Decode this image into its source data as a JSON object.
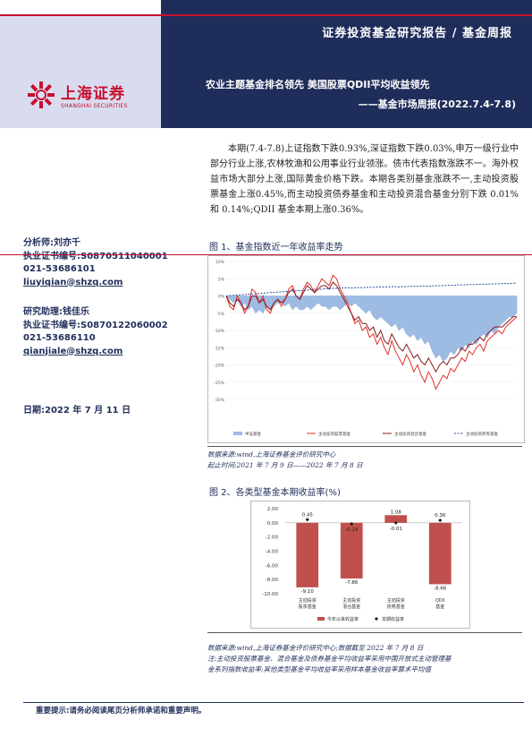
{
  "header": {
    "report_type": "证券投资基金研究报告 / 基金周报"
  },
  "logo": {
    "cn": "上海证券",
    "en": "SHANGHAI SECURITIES"
  },
  "title": {
    "main": "农业主题基金排名领先  美国股票QDII平均收益领先",
    "sub": "——基金市场周报(2022.7.4-7.8)"
  },
  "summary": "本期(7.4-7.8)上证指数下跌0.93%,深证指数下跌0.03%,申万一级行业中部分行业上涨,农林牧渔和公用事业行业领涨。债市代表指数涨跌不一。海外权益市场大部分上涨,国际黄金价格下跌。本期各类别基金涨跌不一,主动投资股票基金上涨0.45%,而主动投资债券基金和主动投资混合基金分别下跌 0.01%和 0.14%;QDII 基金本期上涨0.36%。",
  "analyst": {
    "line1": "分析师:刘亦千",
    "line2": "执业证书编号:S0870511040001",
    "line3": "021-53686101",
    "line4": "liuyiqian@shzq.com"
  },
  "assistant": {
    "line1": "研究助理:钱佳乐",
    "line2": "执业证书编号:S0870122060002",
    "line3": "021-53686110",
    "line4": "qianjiale@shzq.com"
  },
  "date": "日期:2022 年 7 月 11 日",
  "fig1": {
    "title": "图 1、基金指数近一年收益率走势",
    "source1": "数据来源:wind,上海证券基金评价研究中心",
    "source2": "起止时间:2021 年 7 月 9 日——2022 年 7 月 8 日"
  },
  "fig2": {
    "title": "图 2、各类型基金本期收益率(%)",
    "source": "数据来源:wind,上海证券基金评价研究中心;数据截至 2022 年 7 月 8 日",
    "note1": "注:主动投资股票基金、混合基金及债券基金平均收益率采用中国开放式主动管理基",
    "note2": "金系列指数收益率;其他类型基金平均收益率采用样本基金收益率算术平均值"
  },
  "footer": "重要提示:请务必阅读尾页分析师承诺和重要声明。",
  "colors": {
    "navy": "#1f2d5a",
    "red": "#c8102e",
    "bar": "#c0504d",
    "area": "#7fa6d9"
  },
  "chart_data": [
    {
      "type": "line",
      "title": "基金指数近一年收益率走势",
      "ylim": [
        -30,
        10
      ],
      "yticks": [
        "10%",
        "5%",
        "0%",
        "-5%",
        "-10%",
        "-15%",
        "-20%",
        "-25%",
        "-30%"
      ],
      "series": [
        {
          "name": "中证基金",
          "style": "area",
          "values": [
            0,
            -1,
            -2,
            -1,
            -3,
            -2,
            -4,
            -3,
            -5,
            -4,
            -5,
            -3,
            -4,
            -3,
            -2,
            -2,
            -3,
            -2,
            -4,
            -3,
            -4,
            -4,
            -3,
            -4,
            -3,
            -2,
            -3,
            -3,
            -4,
            -3,
            -3,
            -4,
            -3,
            -2,
            -3,
            -2,
            -3,
            -4,
            -5,
            -4,
            -6,
            -7,
            -6,
            -7,
            -8,
            -9,
            -8,
            -10,
            -9,
            -11,
            -12,
            -11,
            -13,
            -12,
            -14,
            -13,
            -16,
            -18,
            -17,
            -19,
            -18,
            -16,
            -17,
            -15,
            -16,
            -14,
            -15,
            -13,
            -14,
            -12,
            -11,
            -12,
            -10,
            -11,
            -9,
            -8,
            -7,
            -6,
            -6,
            -5
          ]
        },
        {
          "name": "主动投资股票基金",
          "style": "red",
          "values": [
            0,
            -3,
            -4,
            0,
            -2,
            -5,
            -3,
            2,
            1,
            -2,
            0,
            -4,
            -5,
            -2,
            -1,
            -3,
            -1,
            2,
            3,
            0,
            -1,
            2,
            4,
            3,
            1,
            3,
            5,
            4,
            3,
            6,
            5,
            2,
            0,
            -2,
            -5,
            -8,
            -7,
            -10,
            -9,
            -12,
            -11,
            -14,
            -12,
            -15,
            -17,
            -13,
            -16,
            -18,
            -20,
            -17,
            -19,
            -22,
            -20,
            -23,
            -25,
            -22,
            -24,
            -27,
            -25,
            -23,
            -24,
            -21,
            -22,
            -20,
            -18,
            -19,
            -16,
            -17,
            -15,
            -14,
            -16,
            -13,
            -12,
            -11,
            -10,
            -11,
            -9,
            -8,
            -7,
            -6
          ]
        },
        {
          "name": "主动投资混合基金",
          "style": "darkred",
          "values": [
            0,
            -2,
            -3,
            -1,
            -2,
            -4,
            -3,
            0,
            0,
            -2,
            -1,
            -3,
            -4,
            -2,
            -1,
            -2,
            -1,
            1,
            2,
            0,
            -1,
            1,
            3,
            2,
            1,
            2,
            3,
            3,
            2,
            4,
            3,
            1,
            -1,
            -3,
            -5,
            -7,
            -6,
            -8,
            -8,
            -10,
            -9,
            -12,
            -10,
            -13,
            -14,
            -11,
            -13,
            -15,
            -16,
            -14,
            -16,
            -18,
            -17,
            -19,
            -20,
            -18,
            -20,
            -22,
            -20,
            -19,
            -20,
            -18,
            -18,
            -17,
            -15,
            -16,
            -14,
            -14,
            -13,
            -12,
            -13,
            -11,
            -10,
            -9,
            -9,
            -9,
            -8,
            -7,
            -6,
            -6
          ]
        },
        {
          "name": "主动投资债券基金",
          "style": "blue-dash",
          "values": [
            0,
            0.1,
            0.2,
            0.3,
            0.3,
            0.4,
            0.5,
            0.6,
            0.6,
            0.7,
            0.8,
            0.9,
            1,
            1,
            1.1,
            1.2,
            1.3,
            1.3,
            1.4,
            1.5,
            1.6,
            1.6,
            1.7,
            1.8,
            1.9,
            1.9,
            2,
            2.1,
            2.1,
            2.2,
            2.2,
            2.3,
            2.3,
            2.4,
            2.3,
            2.3,
            2.4,
            2.4,
            2.5,
            2.5,
            2.5,
            2.6,
            2.6,
            2.6,
            2.6,
            2.7,
            2.7,
            2.6,
            2.7,
            2.7,
            2.8,
            2.8,
            2.8,
            2.9,
            2.9,
            2.8,
            2.9,
            3,
            3,
            3,
            3.1,
            3.1,
            3.1,
            3.2,
            3.2,
            3.2,
            3.3,
            3.3,
            3.3,
            3.4,
            3.4,
            3.4,
            3.5,
            3.5,
            3.5,
            3.6,
            3.6,
            3.6,
            3.7,
            3.7
          ]
        }
      ]
    },
    {
      "type": "bar",
      "title": "各类型基金本期收益率(%)",
      "categories": [
        "主动投资股票基金",
        "主动投资混合基金",
        "主动投资债券基金",
        "QDII基金"
      ],
      "ylim": [
        -10,
        2
      ],
      "yticks": [
        "2.00",
        "0.00",
        "-2.00",
        "-4.00",
        "-6.00",
        "-8.00",
        "-10.00"
      ],
      "series": [
        {
          "name": "今年以来收益率",
          "values": [
            -9.1,
            -7.86,
            1.08,
            -8.66
          ]
        },
        {
          "name": "本期收益率",
          "values": [
            0.45,
            -0.14,
            -0.01,
            0.36
          ]
        }
      ]
    }
  ]
}
